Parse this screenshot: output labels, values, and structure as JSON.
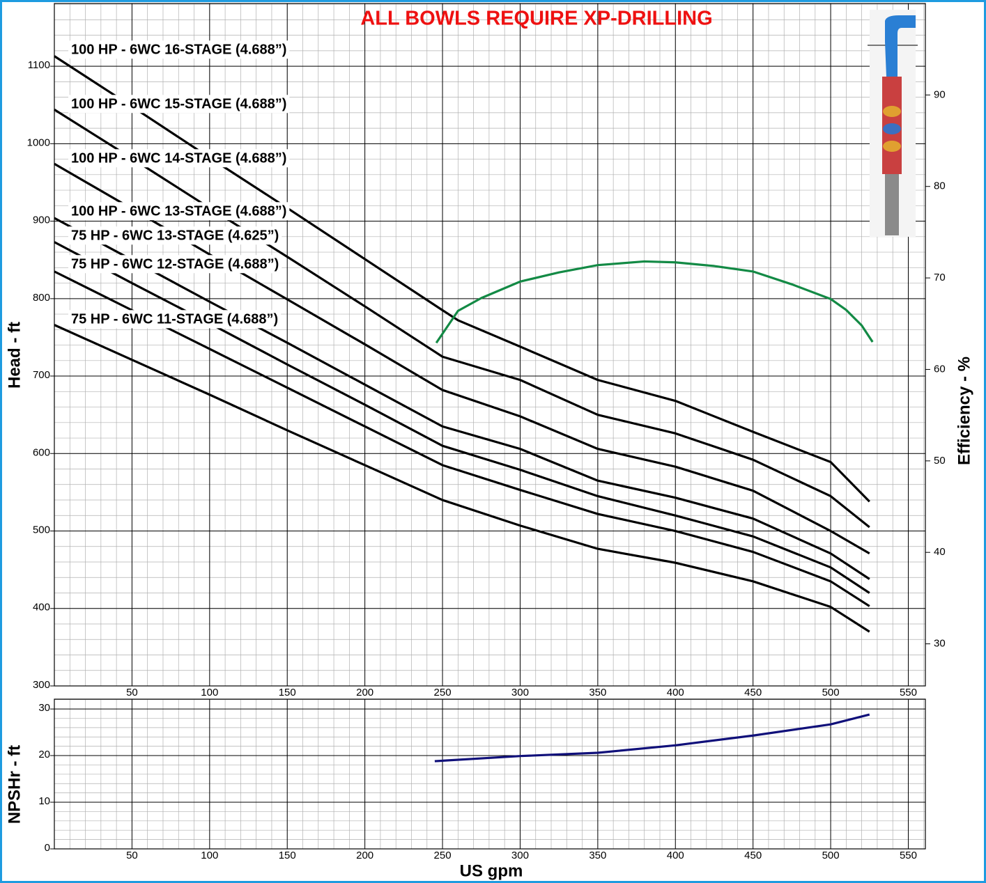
{
  "chart_data": [
    {
      "type": "line",
      "title": "ALL BOWLS REQUIRE XP-DRILLING",
      "ylabel": "Head - ft",
      "y2label": "Efficiency - %",
      "xlim": [
        0,
        561
      ],
      "xticks": [
        50,
        100,
        150,
        200,
        250,
        300,
        350,
        400,
        450,
        500,
        550
      ],
      "ylim": [
        300,
        1181
      ],
      "yticks": [
        300,
        400,
        500,
        600,
        700,
        800,
        900,
        1000,
        1100
      ],
      "y2lim": [
        25.4,
        100
      ],
      "y2ticks": [
        30,
        40,
        50,
        60,
        70,
        80,
        90
      ],
      "grid": true,
      "xminor": 10,
      "yminor": 20,
      "series": [
        {
          "name": "100 HP - 6WC 16-STAGE (4.688”)",
          "color": "#000000",
          "x": [
            0,
            50,
            100,
            150,
            200,
            250,
            260,
            300,
            350,
            400,
            450,
            500,
            525
          ],
          "values": [
            1113,
            1048,
            982,
            917,
            851,
            785,
            772,
            738,
            695,
            668,
            628,
            589,
            538
          ]
        },
        {
          "name": "100 HP - 6WC 15-STAGE (4.688”)",
          "color": "#000000",
          "x": [
            0,
            50,
            100,
            150,
            200,
            250,
            300,
            350,
            400,
            450,
            500,
            525
          ],
          "values": [
            1044,
            981,
            917,
            854,
            790,
            725,
            695,
            650,
            626,
            592,
            545,
            505
          ]
        },
        {
          "name": "100 HP - 6WC 14-STAGE (4.688”)",
          "color": "#000000",
          "x": [
            0,
            50,
            100,
            150,
            200,
            250,
            300,
            350,
            400,
            450,
            500,
            525
          ],
          "values": [
            974,
            916,
            857,
            799,
            741,
            682,
            648,
            606,
            583,
            552,
            500,
            471
          ]
        },
        {
          "name": "100 HP - 6WC 13-STAGE (4.688”)",
          "color": "#000000",
          "x": [
            0,
            50,
            100,
            150,
            200,
            250,
            300,
            350,
            400,
            450,
            500,
            525
          ],
          "values": [
            904,
            850,
            796,
            743,
            689,
            635,
            606,
            565,
            543,
            516,
            471,
            438
          ]
        },
        {
          "name": "75 HP - 6WC 13-STAGE (4.625”)",
          "color": "#000000",
          "x": [
            0,
            50,
            100,
            150,
            200,
            250,
            300,
            350,
            400,
            450,
            500,
            525
          ],
          "values": [
            873,
            820,
            768,
            715,
            663,
            610,
            579,
            545,
            520,
            493,
            453,
            420
          ]
        },
        {
          "name": "75 HP - 6WC 12-STAGE (4.688”)",
          "color": "#000000",
          "x": [
            0,
            50,
            100,
            150,
            200,
            250,
            300,
            350,
            400,
            450,
            500,
            525
          ],
          "values": [
            835,
            785,
            735,
            685,
            635,
            585,
            553,
            522,
            500,
            473,
            435,
            403
          ]
        },
        {
          "name": "75 HP - 6WC 11-STAGE (4.688”)",
          "color": "#000000",
          "x": [
            0,
            50,
            100,
            150,
            200,
            250,
            300,
            350,
            400,
            450,
            500,
            525
          ],
          "values": [
            766,
            721,
            676,
            630,
            585,
            540,
            507,
            477,
            459,
            435,
            402,
            370
          ]
        },
        {
          "color": "#138a45",
          "axis": "y2",
          "x": [
            246,
            260,
            275,
            300,
            325,
            350,
            380,
            400,
            425,
            450,
            475,
            500,
            510,
            520,
            527
          ],
          "values": [
            62.9,
            66.4,
            67.8,
            69.6,
            70.6,
            71.4,
            71.8,
            71.7,
            71.3,
            70.7,
            69.3,
            67.7,
            66.5,
            64.8,
            63.0
          ]
        }
      ]
    },
    {
      "type": "line",
      "xlabel": "US gpm",
      "ylabel": "NPSHr - ft",
      "xlim": [
        0,
        561
      ],
      "xticks": [
        50,
        100,
        150,
        200,
        250,
        300,
        350,
        400,
        450,
        500,
        550
      ],
      "ylim": [
        0,
        32.1
      ],
      "yticks": [
        0,
        10,
        20,
        30
      ],
      "grid": true,
      "xminor": 10,
      "yminor": 2,
      "series": [
        {
          "color": "#10107a",
          "x": [
            245,
            300,
            350,
            400,
            450,
            500,
            525
          ],
          "values": [
            18.8,
            19.9,
            20.6,
            22.2,
            24.3,
            26.7,
            28.8
          ]
        }
      ]
    }
  ]
}
